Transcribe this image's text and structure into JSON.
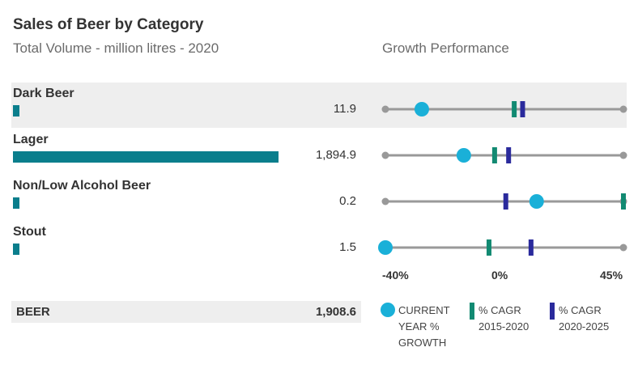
{
  "title": "Sales of Beer by Category",
  "subtitle": "Total Volume - million litres - 2020",
  "growth_title": "Growth Performance",
  "colors": {
    "volume_bar": "#0a7e8c",
    "current_growth": "#1ab0d8",
    "cagr_2015_2020": "#128a72",
    "cagr_2020_2025": "#2a2a9c",
    "track": "#999999",
    "row_shade": "#eeeeee"
  },
  "axis": {
    "min": -40,
    "max": 45,
    "ticks": [
      "-40%",
      "0%",
      "45%"
    ]
  },
  "total": {
    "label": "BEER",
    "value": "1,908.6"
  },
  "legend": {
    "current": "CURRENT YEAR % GROWTH",
    "cagr1": "% CAGR 2015-2020",
    "cagr2": "% CAGR 2020-2025"
  },
  "chart_data": {
    "type": "bar",
    "title": "Sales of Beer by Category",
    "subtitle": "Total Volume - million litres - 2020",
    "categories": [
      "Dark Beer",
      "Lager",
      "Non/Low Alcohol Beer",
      "Stout"
    ],
    "volume": {
      "values": [
        11.9,
        1894.9,
        0.2,
        1.5
      ],
      "labels": [
        "11.9",
        "1,894.9",
        "0.2",
        "1.5"
      ]
    },
    "growth": {
      "title": "Growth Performance",
      "xlim": [
        -40,
        45
      ],
      "series": [
        {
          "name": "CURRENT YEAR % GROWTH",
          "marker": "circle",
          "values": [
            -27,
            -12,
            14,
            -40
          ]
        },
        {
          "name": "% CAGR 2015-2020",
          "marker": "bar",
          "values": [
            6,
            -1,
            45,
            -3
          ]
        },
        {
          "name": "% CAGR 2020-2025",
          "marker": "bar",
          "values": [
            9,
            4,
            3,
            12
          ]
        }
      ]
    },
    "total": {
      "label": "BEER",
      "value": 1908.6
    }
  }
}
